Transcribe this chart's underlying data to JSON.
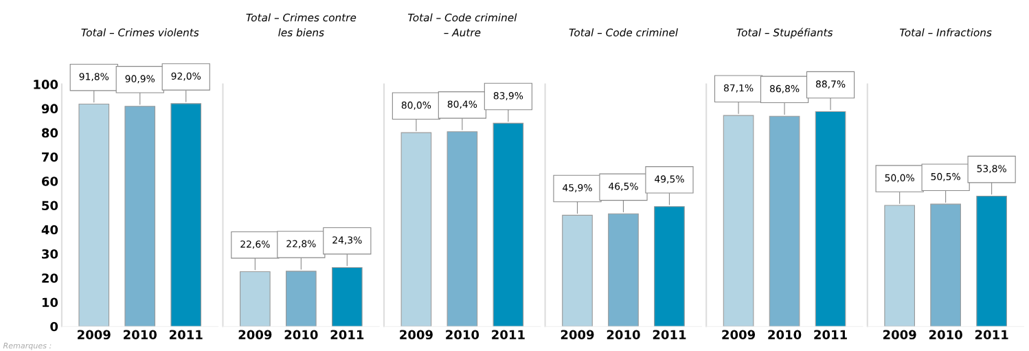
{
  "chart_data": [
    {
      "type": "bar",
      "title": "Total – Crimes violents",
      "categories": [
        "2009",
        "2010",
        "2011"
      ],
      "values": [
        91.8,
        90.9,
        92.0
      ],
      "value_labels": [
        "91,8%",
        "90,9%",
        "92,0%"
      ],
      "colors": [
        "#b3d4e3",
        "#78b2cf",
        "#0090bc"
      ],
      "ylim": [
        0,
        100
      ],
      "yticks": [
        0,
        10,
        20,
        30,
        40,
        50,
        60,
        70,
        80,
        90,
        100
      ],
      "grid": false,
      "annotations": [
        "Remarques :"
      ]
    },
    {
      "type": "bar",
      "title": "Total – Crimes contre\nles biens",
      "categories": [
        "2009",
        "2010",
        "2011"
      ],
      "values": [
        22.6,
        22.8,
        24.3
      ],
      "value_labels": [
        "22,6%",
        "22,8%",
        "24,3%"
      ],
      "colors": [
        "#b3d4e3",
        "#78b2cf",
        "#0090bc"
      ],
      "ylim": [
        0,
        100
      ],
      "yticks": [
        0,
        10,
        20,
        30,
        40,
        50,
        60,
        70,
        80,
        90,
        100
      ],
      "tick_labels": "x",
      "grid": false
    },
    {
      "type": "bar",
      "title": "Total – Code criminel\n– Autre",
      "categories": [
        "2009",
        "2010",
        "2011"
      ],
      "values": [
        80.0,
        80.4,
        83.9
      ],
      "value_labels": [
        "80,0%",
        "80,4%",
        "83,9%"
      ],
      "colors": [
        "#b3d4e3",
        "#78b2cf",
        "#0090bc"
      ],
      "ylim": [
        0,
        100
      ],
      "yticks": [
        0,
        10,
        20,
        30,
        40,
        50,
        60,
        70,
        80,
        90,
        100
      ],
      "tick_labels": "x",
      "grid": false
    },
    {
      "type": "bar",
      "title": "Total – Code criminel",
      "categories": [
        "2009",
        "2010",
        "2011"
      ],
      "values": [
        45.9,
        46.5,
        49.5
      ],
      "value_labels": [
        "45,9%",
        "46,5%",
        "49,5%"
      ],
      "colors": [
        "#b3d4e3",
        "#78b2cf",
        "#0090bc"
      ],
      "ylim": [
        0,
        100
      ],
      "yticks": [
        0,
        10,
        20,
        30,
        40,
        50,
        60,
        70,
        80,
        90,
        100
      ],
      "tick_labels": "x",
      "grid": false
    },
    {
      "type": "bar",
      "title": "Total – Stupéfiants",
      "categories": [
        "2009",
        "2010",
        "2011"
      ],
      "values": [
        87.1,
        86.8,
        88.7
      ],
      "value_labels": [
        "87,1%",
        "86,8%",
        "88,7%"
      ],
      "colors": [
        "#b3d4e3",
        "#78b2cf",
        "#0090bc"
      ],
      "ylim": [
        0,
        100
      ],
      "yticks": [
        0,
        10,
        20,
        30,
        40,
        50,
        60,
        70,
        80,
        90,
        100
      ],
      "tick_labels": "x",
      "grid": false
    },
    {
      "type": "bar",
      "title": "Total – Infractions",
      "categories": [
        "2009",
        "2010",
        "2011"
      ],
      "values": [
        50.0,
        50.5,
        53.8
      ],
      "value_labels": [
        "50,0%",
        "50,5%",
        "53,8%"
      ],
      "colors": [
        "#b3d4e3",
        "#78b2cf",
        "#0090bc"
      ],
      "ylim": [
        0,
        100
      ],
      "yticks": [
        0,
        10,
        20,
        30,
        40,
        50,
        60,
        70,
        80,
        90,
        100
      ],
      "tick_labels": "x",
      "grid": false
    }
  ]
}
